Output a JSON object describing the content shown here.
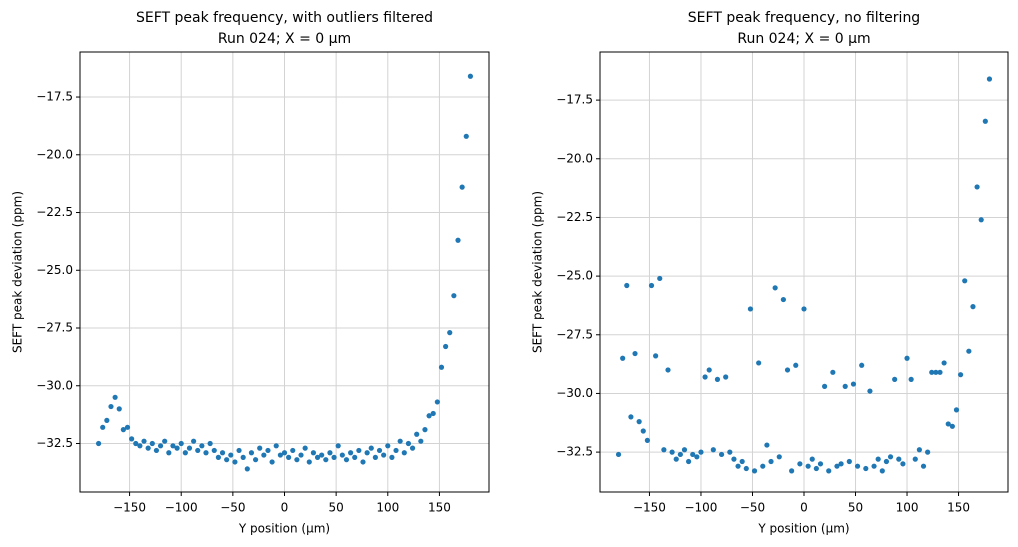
{
  "chart_data": [
    {
      "type": "scatter",
      "title": "SEFT peak frequency, with outliers filtered",
      "subtitle": "Run 024; X = 0 µm",
      "xlabel": "Y position (µm)",
      "ylabel": "SEFT peak deviation (ppm)",
      "color": "#1f77b4",
      "grid": true,
      "xlim": [
        -198,
        198
      ],
      "ylim": [
        -34.6,
        -15.55
      ],
      "xticks": [
        {
          "value": -150,
          "label": "−150"
        },
        {
          "value": -100,
          "label": "−100"
        },
        {
          "value": -50,
          "label": "−50"
        },
        0,
        50,
        100,
        150
      ],
      "yticks": [
        {
          "value": -32.5,
          "label": "−32.5"
        },
        {
          "value": -30,
          "label": "−30.0"
        },
        {
          "value": -27.5,
          "label": "−27.5"
        },
        {
          "value": -25,
          "label": "−25.0"
        },
        {
          "value": -22.5,
          "label": "−22.5"
        },
        {
          "value": -20,
          "label": "−20.0"
        },
        {
          "value": -17.5,
          "label": "−17.5"
        }
      ],
      "x": [
        -180,
        -176,
        -172,
        -168,
        -164,
        -160,
        -156,
        -152,
        -148,
        -144,
        -140,
        -136,
        -132,
        -128,
        -124,
        -120,
        -116,
        -112,
        -108,
        -104,
        -100,
        -96,
        -92,
        -88,
        -84,
        -80,
        -76,
        -72,
        -68,
        -64,
        -60,
        -56,
        -52,
        -48,
        -44,
        -40,
        -36,
        -32,
        -28,
        -24,
        -20,
        -16,
        -12,
        -8,
        -4,
        0,
        4,
        8,
        12,
        16,
        20,
        24,
        28,
        32,
        36,
        40,
        44,
        48,
        52,
        56,
        60,
        64,
        68,
        72,
        76,
        80,
        84,
        88,
        92,
        96,
        100,
        104,
        108,
        112,
        116,
        120,
        124,
        128,
        132,
        136,
        140,
        144,
        148,
        152,
        156,
        160,
        164,
        168,
        172,
        176,
        180
      ],
      "values": [
        -32.5,
        -31.8,
        -31.5,
        -30.9,
        -30.5,
        -31.0,
        -31.9,
        -31.8,
        -32.3,
        -32.5,
        -32.6,
        -32.4,
        -32.7,
        -32.5,
        -32.8,
        -32.6,
        -32.4,
        -32.9,
        -32.6,
        -32.7,
        -32.5,
        -32.9,
        -32.7,
        -32.4,
        -32.8,
        -32.6,
        -32.9,
        -32.5,
        -32.8,
        -33.1,
        -32.9,
        -33.2,
        -33.0,
        -33.3,
        -32.8,
        -33.1,
        -33.6,
        -32.9,
        -33.2,
        -32.7,
        -33.0,
        -32.8,
        -33.3,
        -32.6,
        -33.0,
        -32.9,
        -33.1,
        -32.8,
        -33.2,
        -33.0,
        -32.7,
        -33.3,
        -32.9,
        -33.1,
        -33.0,
        -33.2,
        -32.9,
        -33.1,
        -32.6,
        -33.0,
        -33.2,
        -32.9,
        -33.1,
        -32.8,
        -33.3,
        -32.9,
        -32.7,
        -33.1,
        -32.8,
        -33.0,
        -32.6,
        -33.1,
        -32.8,
        -32.4,
        -32.9,
        -32.5,
        -32.7,
        -32.1,
        -32.4,
        -31.9,
        -31.3,
        -31.2,
        -30.7,
        -29.2,
        -28.3,
        -27.7,
        -26.1,
        -23.7,
        -21.4,
        -19.2,
        -16.6
      ]
    },
    {
      "type": "scatter",
      "title": "SEFT peak frequency, no filtering",
      "subtitle": "Run 024; X = 0 µm",
      "xlabel": "Y position (µm)",
      "ylabel": "SEFT peak deviation (ppm)",
      "color": "#1f77b4",
      "grid": true,
      "xlim": [
        -198,
        198
      ],
      "ylim": [
        -34.2,
        -15.45
      ],
      "xticks": [
        {
          "value": -150,
          "label": "−150"
        },
        {
          "value": -100,
          "label": "−100"
        },
        {
          "value": -50,
          "label": "−50"
        },
        0,
        50,
        100,
        150
      ],
      "yticks": [
        {
          "value": -32.5,
          "label": "−32.5"
        },
        {
          "value": -30,
          "label": "−30.0"
        },
        {
          "value": -27.5,
          "label": "−27.5"
        },
        {
          "value": -25,
          "label": "−25.0"
        },
        {
          "value": -22.5,
          "label": "−22.5"
        },
        {
          "value": -20,
          "label": "−20.0"
        },
        {
          "value": -17.5,
          "label": "−17.5"
        }
      ],
      "x": [
        -180,
        -176,
        -172,
        -168,
        -164,
        -160,
        -156,
        -152,
        -148,
        -144,
        -140,
        -136,
        -132,
        -128,
        -124,
        -120,
        -116,
        -112,
        -108,
        -104,
        -100,
        -96,
        -92,
        -88,
        -84,
        -80,
        -76,
        -72,
        -68,
        -64,
        -60,
        -56,
        -52,
        -48,
        -44,
        -40,
        -36,
        -32,
        -28,
        -24,
        -20,
        -16,
        -12,
        -8,
        -4,
        0,
        4,
        8,
        12,
        16,
        20,
        24,
        28,
        32,
        36,
        40,
        44,
        48,
        52,
        56,
        60,
        64,
        68,
        72,
        76,
        80,
        84,
        88,
        92,
        96,
        100,
        104,
        108,
        112,
        116,
        120,
        124,
        128,
        132,
        136,
        140,
        144,
        148,
        152,
        156,
        160,
        164,
        168,
        172,
        176,
        180
      ],
      "values": [
        -32.6,
        -28.5,
        -25.4,
        -31.0,
        -28.3,
        -31.2,
        -31.6,
        -32.0,
        -25.4,
        -28.4,
        -25.1,
        -32.4,
        -29.0,
        -32.5,
        -32.8,
        -32.6,
        -32.4,
        -32.9,
        -32.6,
        -32.7,
        -32.5,
        -29.3,
        -29.0,
        -32.4,
        -29.4,
        -32.6,
        -29.3,
        -32.5,
        -32.8,
        -33.1,
        -32.9,
        -33.2,
        -26.4,
        -33.3,
        -28.7,
        -33.1,
        -32.2,
        -32.9,
        -25.5,
        -32.7,
        -26.0,
        -29.0,
        -33.3,
        -28.8,
        -33.0,
        -26.4,
        -33.1,
        -32.8,
        -33.2,
        -33.0,
        -29.7,
        -33.3,
        -29.1,
        -33.1,
        -33.0,
        -29.7,
        -32.9,
        -29.6,
        -33.1,
        -28.8,
        -33.2,
        -29.9,
        -33.1,
        -32.8,
        -33.3,
        -32.9,
        -32.7,
        -29.4,
        -32.8,
        -33.0,
        -28.5,
        -29.4,
        -32.8,
        -32.4,
        -33.1,
        -32.5,
        -29.1,
        -29.1,
        -29.1,
        -28.7,
        -31.3,
        -31.4,
        -30.7,
        -29.2,
        -25.2,
        -28.2,
        -26.3,
        -21.2,
        -22.6,
        -18.4,
        -16.6
      ]
    }
  ]
}
